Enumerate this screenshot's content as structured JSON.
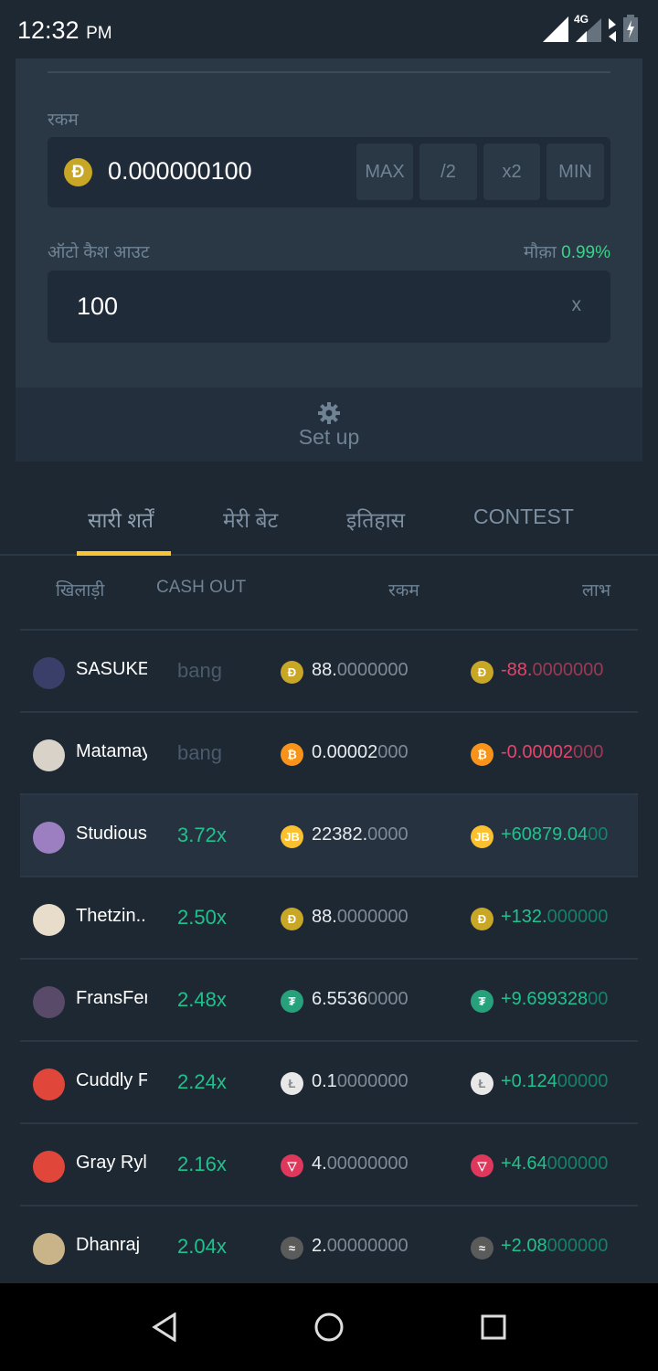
{
  "status_bar": {
    "time": "12:32",
    "ampm": "PM",
    "network": "4G"
  },
  "bet_panel": {
    "amount_label": "रकम",
    "amount_value": "0.000000100",
    "amount_coin": "doge-icon",
    "buttons": [
      "MAX",
      "/2",
      "x2",
      "MIN"
    ],
    "auto_cashout_label": "ऑटो कैश आउट",
    "chance_label": "मौक़ा",
    "chance_value": "0.99%",
    "auto_cashout_value": "100",
    "auto_cashout_suffix": "x"
  },
  "setup": {
    "label": "Set up",
    "icon": "gear-icon"
  },
  "tabs": [
    {
      "label": "सारी शर्तें",
      "active": true
    },
    {
      "label": "मेरी बेट"
    },
    {
      "label": "इतिहास"
    },
    {
      "label": "CONTEST"
    }
  ],
  "table": {
    "headers": [
      "खिलाड़ी",
      "CASH OUT",
      "रकम",
      "लाभ"
    ],
    "rows": [
      {
        "player": "SASUKE",
        "cashout": "bang",
        "coin": "doge",
        "amount": [
          "88.",
          "0000000"
        ],
        "profit": [
          "-88.",
          "0000000"
        ],
        "win": false,
        "avatar": "#3a3f6a"
      },
      {
        "player": "Matamay",
        "cashout": "bang",
        "coin": "btc",
        "amount": [
          "0.00002",
          "000"
        ],
        "profit": [
          "-0.00002",
          "000"
        ],
        "win": false,
        "avatar": "#d8d2c8"
      },
      {
        "player": "Studious",
        "cashout": "3.72x",
        "coin": "jb",
        "amount": [
          "22382.",
          "0000"
        ],
        "profit": [
          "+60879.04",
          "00"
        ],
        "win": true,
        "avatar": "#9b7fc0",
        "highlight": true
      },
      {
        "player": "Thetzin...",
        "cashout": "2.50x",
        "coin": "doge",
        "amount": [
          "88.",
          "0000000"
        ],
        "profit": [
          "+132.",
          "000000"
        ],
        "win": true,
        "avatar": "#e8dccb"
      },
      {
        "player": "FransFer",
        "cashout": "2.48x",
        "coin": "usdt",
        "amount": [
          "6.5536",
          "0000"
        ],
        "profit": [
          "+9.699328",
          "00"
        ],
        "win": true,
        "avatar": "#5a4a6a"
      },
      {
        "player": "Cuddly F",
        "cashout": "2.24x",
        "coin": "ltc",
        "amount": [
          "0.1",
          "0000000"
        ],
        "profit": [
          "+0.124",
          "00000"
        ],
        "win": true,
        "avatar": "#e0463a"
      },
      {
        "player": "Gray Ryle",
        "cashout": "2.16x",
        "coin": "trx",
        "amount": [
          "4.",
          "00000000"
        ],
        "profit": [
          "+4.64",
          "000000"
        ],
        "win": true,
        "avatar": "#e0463a"
      },
      {
        "player": "Dhanraj",
        "cashout": "2.04x",
        "coin": "xlm",
        "amount": [
          "2.",
          "00000000"
        ],
        "profit": [
          "+2.08",
          "000000"
        ],
        "win": true,
        "avatar": "#c9b48a"
      }
    ]
  },
  "colors": {
    "win": "#1fc28c",
    "win_dim": "#14806a",
    "loss": "#e6456a",
    "loss_dim": "#9a3a55",
    "dim": "#7d8a96",
    "accent": "#f7c535"
  }
}
